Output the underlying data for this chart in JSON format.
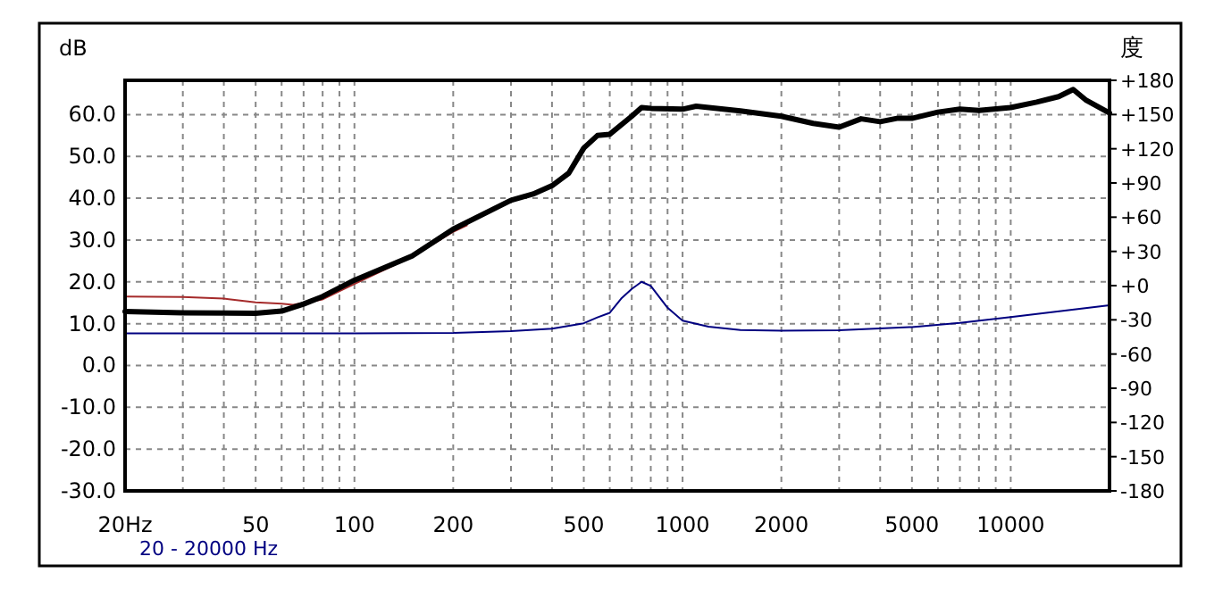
{
  "chart_data": {
    "type": "line",
    "ylabel": "dB",
    "y2label": "度",
    "log": "x",
    "grid": true,
    "marker": "none",
    "line_style": "solid",
    "xlim": [
      20,
      20000
    ],
    "ylim": [
      -30,
      68.2
    ],
    "y2lim": [
      -180,
      180
    ],
    "xticks": [
      {
        "value": 20,
        "label": "20Hz"
      },
      {
        "value": 30,
        "label": null
      },
      {
        "value": 40,
        "label": null
      },
      50,
      {
        "value": 60,
        "label": null
      },
      {
        "value": 70,
        "label": null
      },
      {
        "value": 80,
        "label": null
      },
      {
        "value": 90,
        "label": null
      },
      100,
      200,
      {
        "value": 300,
        "label": null
      },
      {
        "value": 400,
        "label": null
      },
      500,
      {
        "value": 600,
        "label": null
      },
      {
        "value": 700,
        "label": null
      },
      {
        "value": 800,
        "label": null
      },
      {
        "value": 900,
        "label": null
      },
      1000,
      2000,
      {
        "value": 3000,
        "label": null
      },
      {
        "value": 4000,
        "label": null
      },
      5000,
      {
        "value": 6000,
        "label": null
      },
      {
        "value": 7000,
        "label": null
      },
      {
        "value": 8000,
        "label": null
      },
      {
        "value": 9000,
        "label": null
      },
      10000
    ],
    "yticks": [
      {
        "value": -30,
        "label": "-30.0"
      },
      {
        "value": -20,
        "label": "-20.0"
      },
      {
        "value": -10,
        "label": "-10.0"
      },
      {
        "value": 0,
        "label": "0.0"
      },
      {
        "value": 10,
        "label": "10.0"
      },
      {
        "value": 20,
        "label": "20.0"
      },
      {
        "value": 30,
        "label": "30.0"
      },
      {
        "value": 40,
        "label": "40.0"
      },
      {
        "value": 50,
        "label": "50.0"
      },
      {
        "value": 60,
        "label": "60.0"
      }
    ],
    "y2ticks": [
      -180,
      -150,
      -120,
      -90,
      -60,
      -30,
      {
        "value": 0,
        "label": "+0"
      },
      {
        "value": 30,
        "label": "+30"
      },
      {
        "value": 60,
        "label": "+60"
      },
      {
        "value": 90,
        "label": "+90"
      },
      {
        "value": 120,
        "label": "+120"
      },
      {
        "value": 150,
        "label": "+150"
      },
      {
        "value": 180,
        "label": "+180"
      }
    ],
    "annotations": [
      "20 - 20000 Hz"
    ],
    "series": [
      {
        "color": "#a52a2a",
        "x": [
          20,
          30,
          40,
          50,
          60,
          65,
          80,
          100,
          150,
          200,
          220
        ],
        "values": [
          16.5,
          16.4,
          16,
          15.1,
          14.8,
          14.5,
          15.8,
          19.5,
          26,
          32,
          33.5
        ]
      },
      {
        "color": "#000080",
        "x": [
          20,
          100,
          200,
          300,
          400,
          500,
          550,
          600,
          650,
          700,
          750,
          800,
          900,
          1000,
          1200,
          1500,
          2000,
          3000,
          5000,
          7000,
          10000,
          20000
        ],
        "values": [
          7.7,
          7.7,
          7.8,
          8.2,
          8.8,
          10.1,
          11.5,
          12.6,
          16,
          18.3,
          20,
          19,
          13.8,
          10.7,
          9.3,
          8.5,
          8.3,
          8.4,
          9.2,
          10.2,
          11.6,
          14.4
        ]
      },
      {
        "color": "#000000",
        "x": [
          20,
          30,
          50,
          60,
          70,
          80,
          100,
          120,
          150,
          200,
          300,
          350,
          400,
          450,
          500,
          550,
          600,
          700,
          750,
          800,
          1000,
          1100,
          1500,
          2000,
          2500,
          3000,
          3500,
          4000,
          4500,
          5000,
          6000,
          7000,
          8000,
          10000,
          12000,
          14000,
          15500,
          17000,
          20000
        ],
        "values": [
          12.9,
          12.6,
          12.5,
          13,
          14.7,
          16.5,
          20.4,
          23,
          26.2,
          32.6,
          39.5,
          41,
          43,
          46,
          52,
          55,
          55.3,
          59.6,
          61.7,
          61.5,
          61.3,
          62,
          60.9,
          59.6,
          57.9,
          57,
          59,
          58.3,
          59.1,
          59.1,
          60.6,
          61.3,
          61,
          61.7,
          63,
          64.3,
          66,
          63.4,
          60.4
        ]
      }
    ]
  }
}
